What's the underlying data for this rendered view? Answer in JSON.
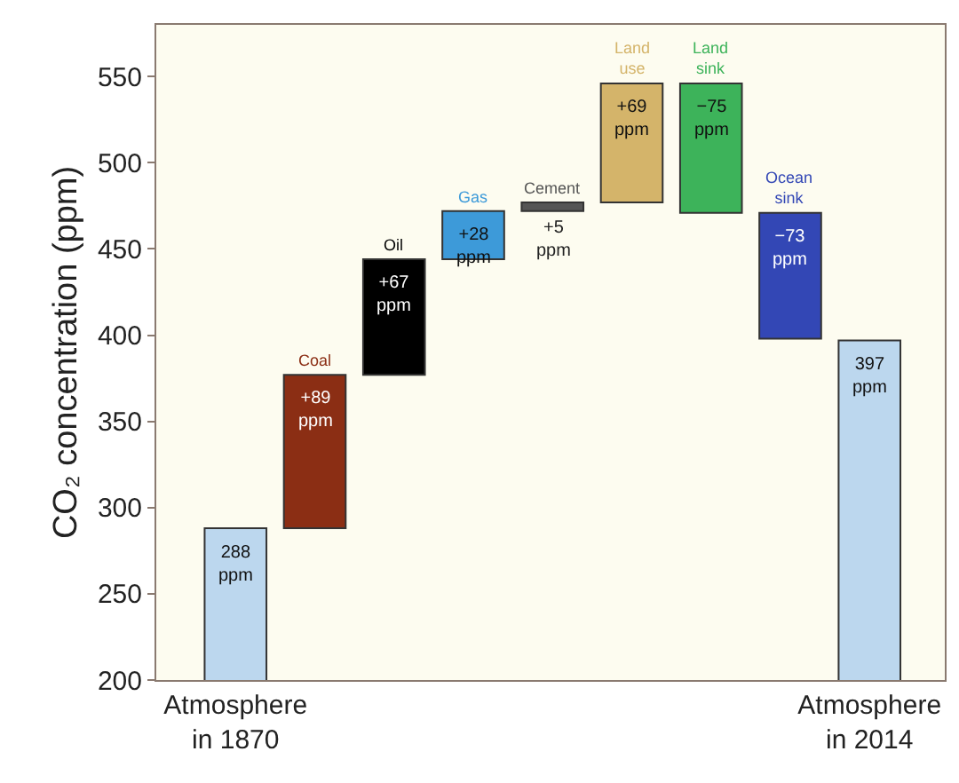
{
  "chart_data": {
    "type": "bar",
    "ylabel": "CO₂ concentration (ppm)",
    "categories": [
      "Atmosphere in 1870",
      "Coal",
      "Oil",
      "Gas",
      "Cement",
      "Land use",
      "Land sink",
      "Ocean sink",
      "Atmosphere in 2014"
    ],
    "values": [
      288,
      89,
      67,
      28,
      5,
      69,
      -75,
      -73,
      397
    ],
    "base": [
      0,
      288,
      377,
      444,
      472,
      477,
      546,
      471,
      0
    ],
    "colors": [
      "#bcd7ee",
      "#8b2e14",
      "#000000",
      "#3d9ad9",
      "#555555",
      "#d4b46a",
      "#3db35a",
      "#3347b5",
      "#bcd7ee"
    ],
    "value_labels": [
      "288 ppm",
      "+89 ppm",
      "+67 ppm",
      "+28 ppm",
      "+5 ppm",
      "+69 ppm",
      "−75 ppm",
      "−73 ppm",
      "397 ppm"
    ],
    "ylim": [
      200,
      580
    ],
    "yticks": [
      200,
      250,
      300,
      350,
      400,
      450,
      500,
      550
    ],
    "grid": false
  }
}
